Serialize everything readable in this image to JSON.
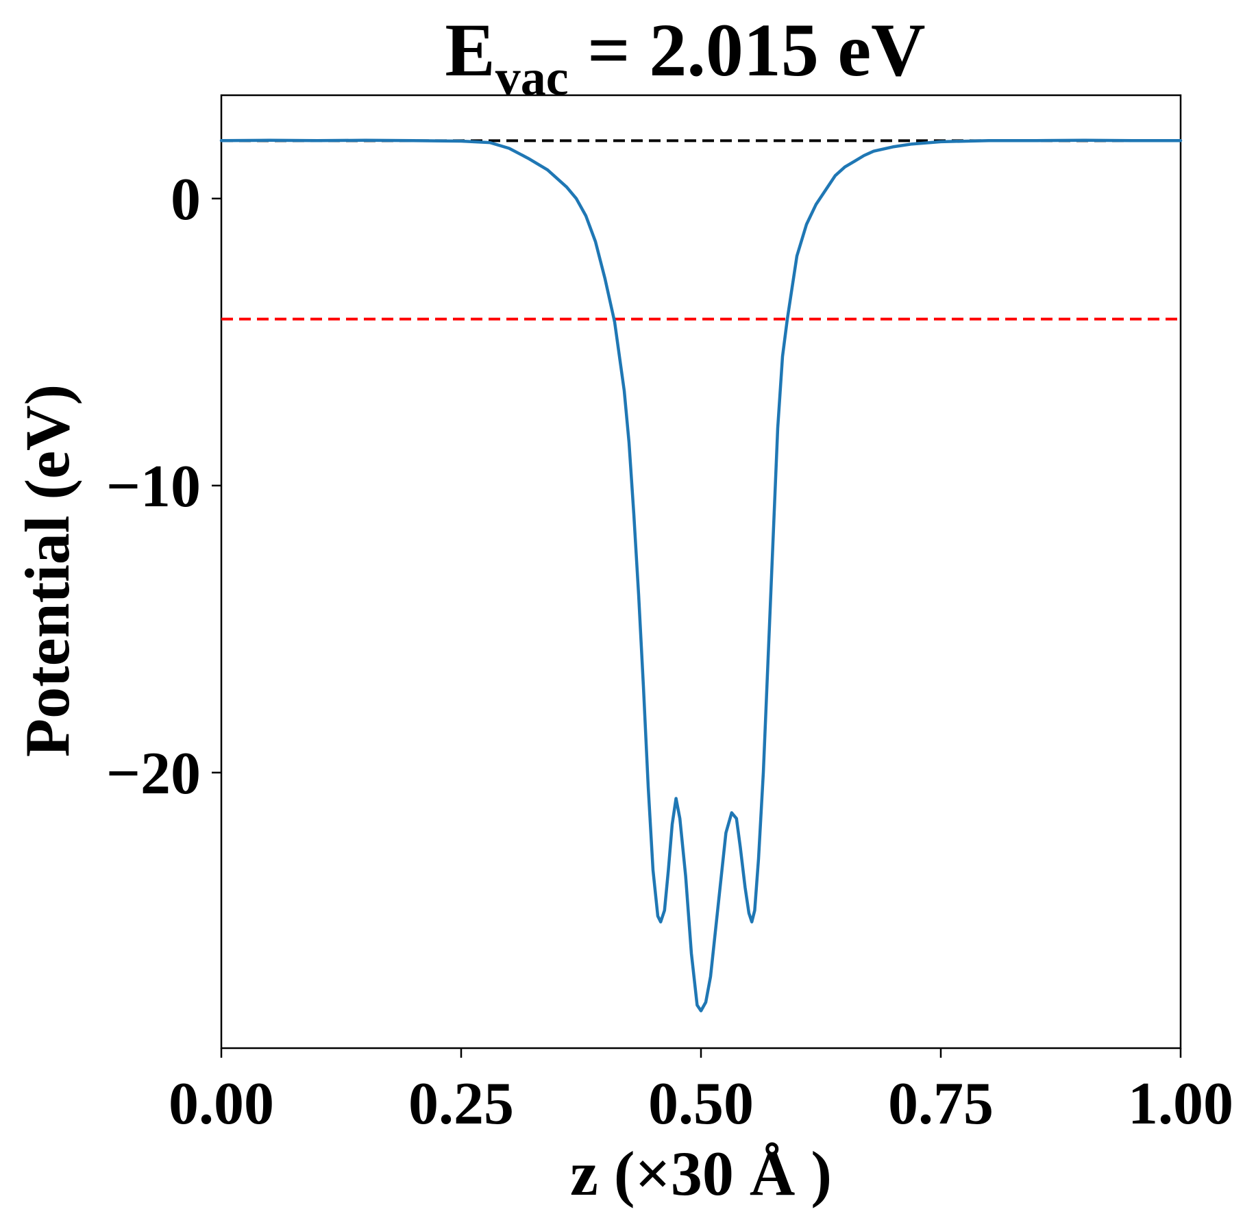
{
  "chart_data": {
    "type": "line",
    "title": {
      "main": "E",
      "sub": "vac",
      "rest": " = 2.015 eV"
    },
    "xlabel": "z (×30 Å )",
    "ylabel": "Potential (eV)",
    "xlim": [
      0,
      1
    ],
    "ylim": [
      -29.6,
      3.6
    ],
    "x_ticks": [
      0.0,
      0.25,
      0.5,
      0.75,
      1.0
    ],
    "x_tick_labels": [
      "0.00",
      "0.25",
      "0.50",
      "0.75",
      "1.00"
    ],
    "y_ticks": [
      0,
      -10,
      -20
    ],
    "y_tick_labels": [
      "0",
      "−10",
      "−20"
    ],
    "grid": false,
    "reference_lines": [
      {
        "y": 2.015,
        "color": "#000000",
        "style": "dashed"
      },
      {
        "y": -4.2,
        "color": "#ff0000",
        "style": "dashed"
      }
    ],
    "series": [
      {
        "color": "#1f77b4",
        "points": [
          [
            0.0,
            2.02
          ],
          [
            0.05,
            2.03
          ],
          [
            0.1,
            2.02
          ],
          [
            0.15,
            2.03
          ],
          [
            0.2,
            2.02
          ],
          [
            0.25,
            2.0
          ],
          [
            0.28,
            1.95
          ],
          [
            0.3,
            1.75
          ],
          [
            0.32,
            1.4
          ],
          [
            0.34,
            1.0
          ],
          [
            0.36,
            0.4
          ],
          [
            0.37,
            0.0
          ],
          [
            0.38,
            -0.6
          ],
          [
            0.39,
            -1.5
          ],
          [
            0.4,
            -2.8
          ],
          [
            0.41,
            -4.3
          ],
          [
            0.42,
            -6.7
          ],
          [
            0.425,
            -8.5
          ],
          [
            0.43,
            -11.0
          ],
          [
            0.435,
            -13.8
          ],
          [
            0.44,
            -17.0
          ],
          [
            0.445,
            -20.5
          ],
          [
            0.45,
            -23.4
          ],
          [
            0.455,
            -25.0
          ],
          [
            0.458,
            -25.2
          ],
          [
            0.462,
            -24.8
          ],
          [
            0.466,
            -23.4
          ],
          [
            0.47,
            -21.8
          ],
          [
            0.474,
            -20.9
          ],
          [
            0.478,
            -21.6
          ],
          [
            0.484,
            -23.6
          ],
          [
            0.49,
            -26.3
          ],
          [
            0.496,
            -28.1
          ],
          [
            0.5,
            -28.3
          ],
          [
            0.505,
            -28.0
          ],
          [
            0.51,
            -27.1
          ],
          [
            0.518,
            -24.6
          ],
          [
            0.526,
            -22.1
          ],
          [
            0.532,
            -21.4
          ],
          [
            0.537,
            -21.6
          ],
          [
            0.541,
            -22.6
          ],
          [
            0.546,
            -24.0
          ],
          [
            0.55,
            -24.9
          ],
          [
            0.553,
            -25.2
          ],
          [
            0.556,
            -24.8
          ],
          [
            0.56,
            -23.0
          ],
          [
            0.565,
            -20.0
          ],
          [
            0.57,
            -16.0
          ],
          [
            0.575,
            -12.0
          ],
          [
            0.58,
            -8.0
          ],
          [
            0.585,
            -5.5
          ],
          [
            0.59,
            -4.2
          ],
          [
            0.6,
            -2.0
          ],
          [
            0.61,
            -0.9
          ],
          [
            0.62,
            -0.2
          ],
          [
            0.63,
            0.3
          ],
          [
            0.64,
            0.8
          ],
          [
            0.65,
            1.1
          ],
          [
            0.66,
            1.3
          ],
          [
            0.67,
            1.5
          ],
          [
            0.68,
            1.65
          ],
          [
            0.7,
            1.8
          ],
          [
            0.72,
            1.9
          ],
          [
            0.75,
            1.98
          ],
          [
            0.8,
            2.02
          ],
          [
            0.85,
            2.02
          ],
          [
            0.9,
            2.03
          ],
          [
            0.95,
            2.02
          ],
          [
            1.0,
            2.02
          ]
        ]
      }
    ]
  }
}
